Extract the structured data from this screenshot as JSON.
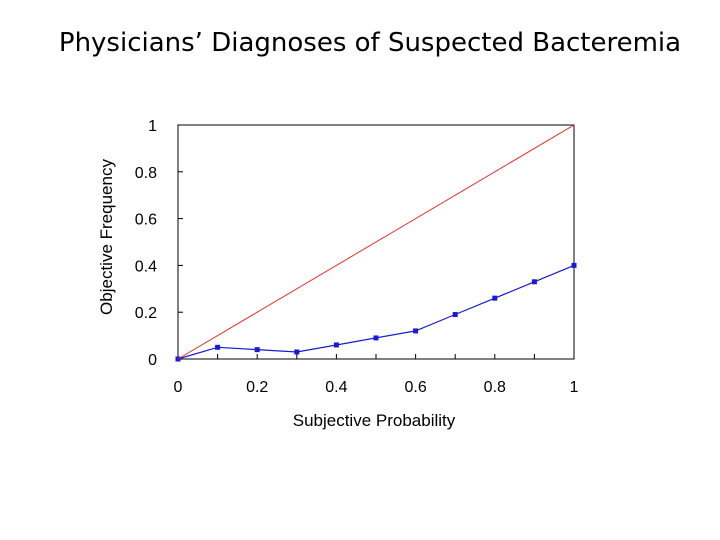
{
  "slide": {
    "title": "Physicians’ Diagnoses of Suspected Bacteremia"
  },
  "chart_data": {
    "type": "line",
    "xlabel": "Subjective Probability",
    "ylabel": "Objective Frequency",
    "xlim": [
      0,
      1
    ],
    "ylim": [
      0,
      1
    ],
    "x_ticks": [
      "0",
      "0.2",
      "0.4",
      "0.6",
      "0.8",
      "1"
    ],
    "y_ticks": [
      "0",
      "0.2",
      "0.4",
      "0.6",
      "0.8",
      "1"
    ],
    "grid": false,
    "series": [
      {
        "style": "observed",
        "color": "#1a1ad0",
        "marker": "square",
        "x": [
          0,
          0.1,
          0.2,
          0.3,
          0.4,
          0.5,
          0.6,
          0.7,
          0.8,
          0.9,
          1.0
        ],
        "y": [
          0.0,
          0.05,
          0.04,
          0.03,
          0.06,
          0.09,
          0.12,
          0.19,
          0.26,
          0.33,
          0.4
        ]
      },
      {
        "style": "reference-diagonal",
        "color": "#e03030",
        "marker": "none",
        "x": [
          0,
          1
        ],
        "y": [
          0,
          1
        ]
      }
    ]
  }
}
